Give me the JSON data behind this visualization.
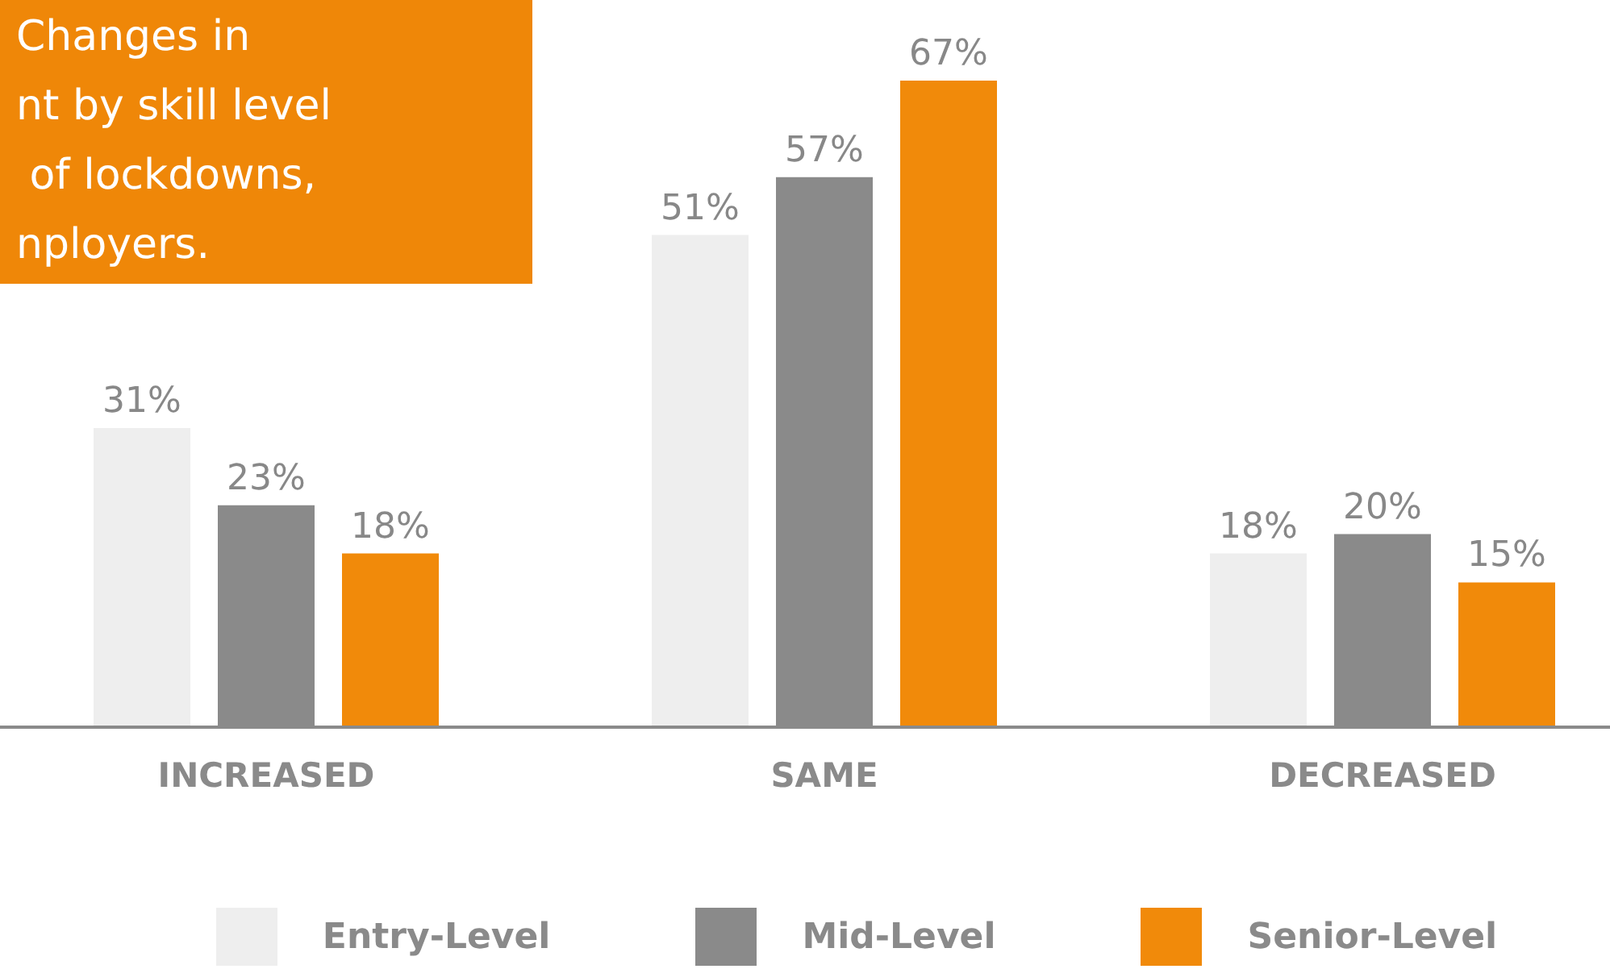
{
  "chart_data": {
    "type": "bar",
    "title": "Changes in\nnt by skill level\n of lockdowns,\nnployers.",
    "categories": [
      "INCREASED",
      "SAME",
      "DECREASED"
    ],
    "series": [
      {
        "name": "Entry-Level",
        "color": "#eeeeee",
        "values": [
          31,
          51,
          18
        ],
        "value_labels": [
          "31%",
          "51%",
          "18%"
        ]
      },
      {
        "name": "Mid-Level",
        "color": "#8a8a8a",
        "values": [
          23,
          57,
          20
        ],
        "value_labels": [
          "23%",
          "57%",
          "20%"
        ]
      },
      {
        "name": "Senior-Level",
        "color": "#f18a0a",
        "values": [
          18,
          67,
          15
        ],
        "value_labels": [
          "18%",
          "67%",
          "15%"
        ]
      }
    ],
    "legend": "bottom",
    "grid": false
  }
}
